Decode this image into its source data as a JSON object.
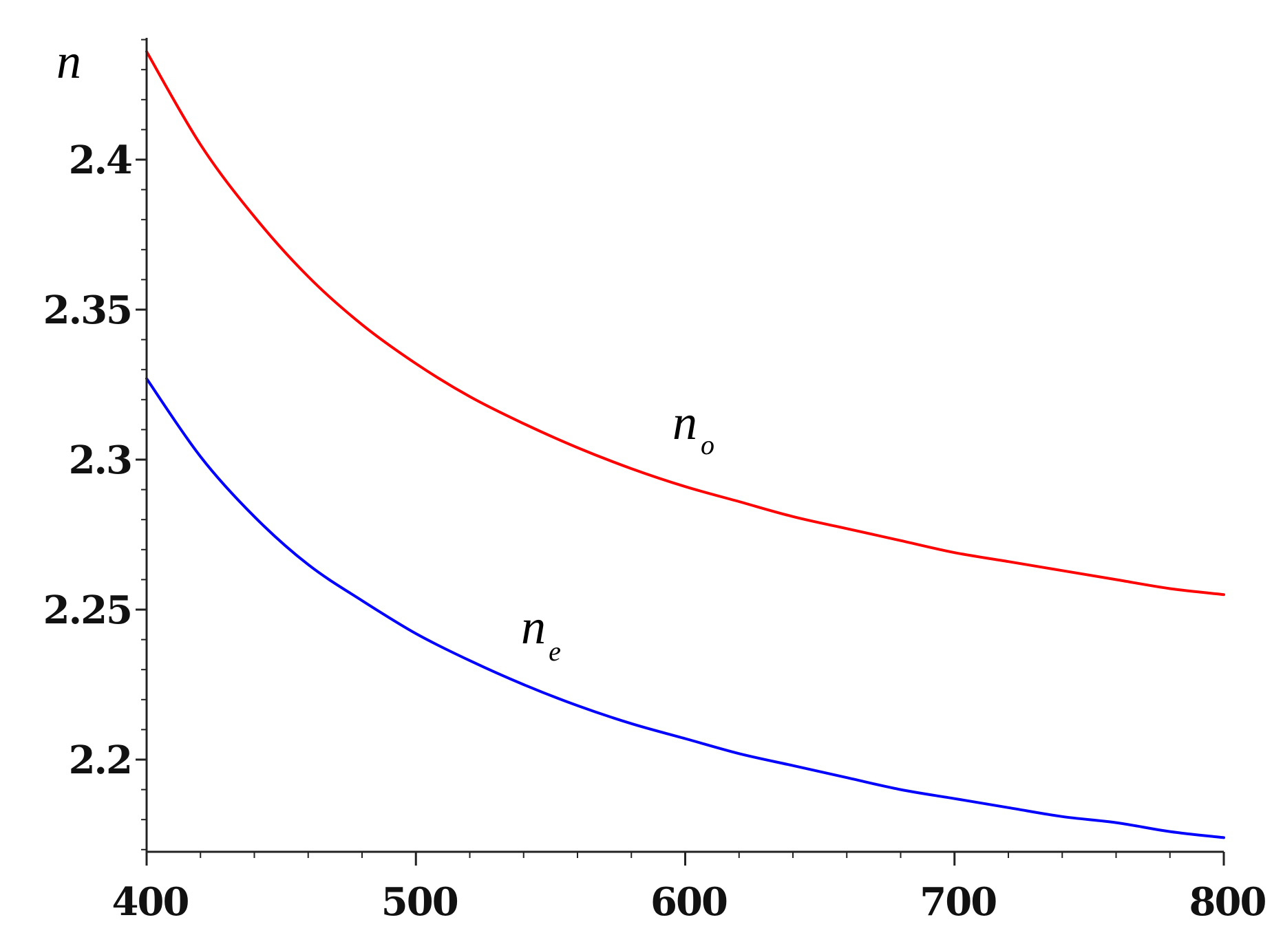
{
  "chart_data": {
    "type": "line",
    "title": "",
    "xlabel": "",
    "ylabel": "n",
    "xlim": [
      400,
      800
    ],
    "ylim": [
      2.169,
      2.436
    ],
    "x_ticks": [
      400,
      500,
      600,
      700,
      800
    ],
    "y_ticks": [
      2.2,
      2.25,
      2.3,
      2.35,
      2.4
    ],
    "y_tick_labels": [
      "2.2",
      "2.25",
      "2.3",
      "2.35",
      "2.4"
    ],
    "x_tick_labels": [
      "400",
      "500",
      "600",
      "700",
      "800"
    ],
    "grid": false,
    "legend": "none (curves labeled inline)",
    "series": [
      {
        "name": "n_o",
        "label_main": "n",
        "label_sub": "o",
        "color": "#ff0000",
        "x": [
          400,
          420,
          440,
          460,
          480,
          500,
          520,
          540,
          560,
          580,
          600,
          620,
          640,
          660,
          680,
          700,
          720,
          740,
          760,
          780,
          800
        ],
        "values": [
          2.436,
          2.405,
          2.381,
          2.361,
          2.345,
          2.332,
          2.321,
          2.312,
          2.304,
          2.297,
          2.291,
          2.286,
          2.281,
          2.277,
          2.273,
          2.269,
          2.266,
          2.263,
          2.26,
          2.257,
          2.255
        ]
      },
      {
        "name": "n_e",
        "label_main": "n",
        "label_sub": "e",
        "color": "#0000ff",
        "x": [
          400,
          420,
          440,
          460,
          480,
          500,
          520,
          540,
          560,
          580,
          600,
          620,
          640,
          660,
          680,
          700,
          720,
          740,
          760,
          780,
          800
        ],
        "values": [
          2.327,
          2.301,
          2.281,
          2.265,
          2.253,
          2.242,
          2.233,
          2.225,
          2.218,
          2.212,
          2.207,
          2.202,
          2.198,
          2.194,
          2.19,
          2.187,
          2.184,
          2.181,
          2.179,
          2.176,
          2.174
        ]
      }
    ]
  }
}
